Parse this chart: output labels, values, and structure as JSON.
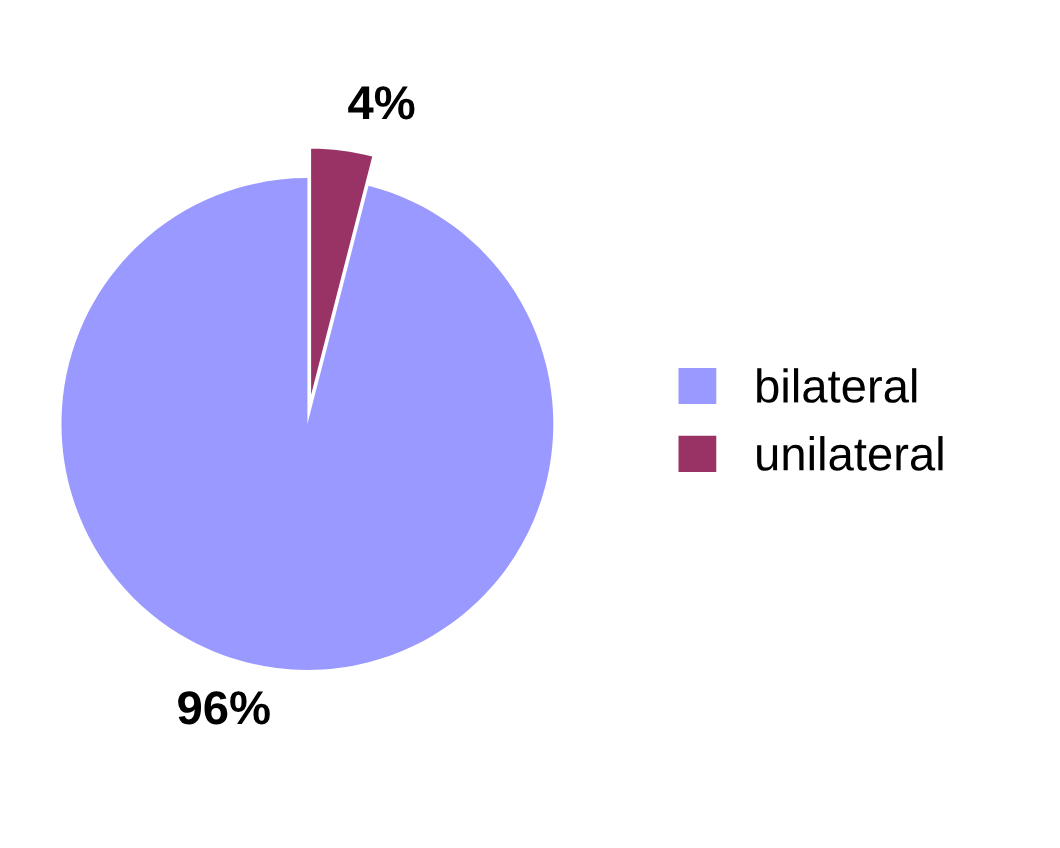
{
  "chart_data": {
    "type": "pie",
    "categories": [
      "bilateral",
      "unilateral"
    ],
    "values": [
      96,
      4
    ],
    "colors": [
      "#9999ff",
      "#993366"
    ],
    "value_labels": [
      "96%",
      "4%"
    ],
    "legend": "right"
  }
}
